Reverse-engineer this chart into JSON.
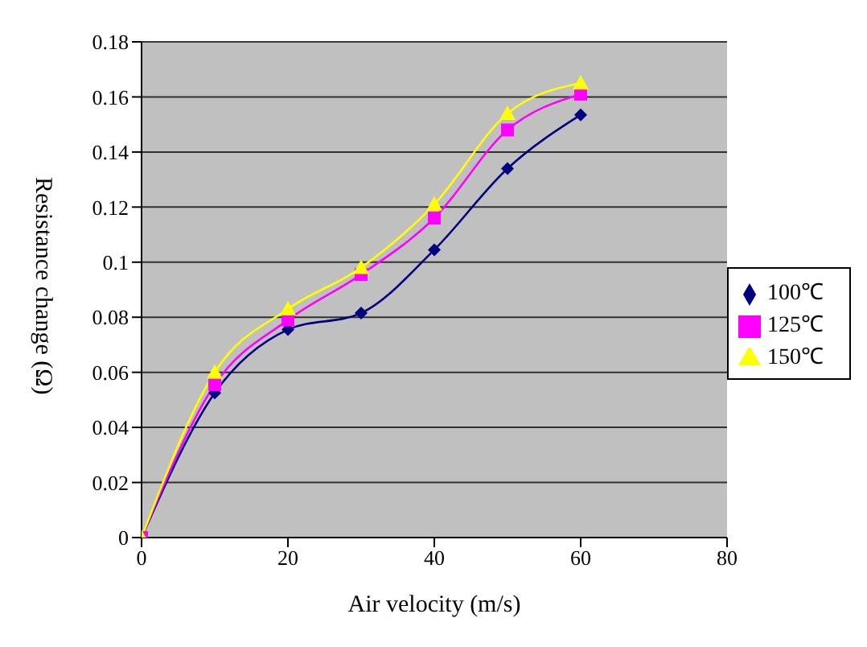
{
  "chart_data": {
    "type": "line",
    "xlabel": "Air velocity (m/s)",
    "ylabel": "Resistance change (Ω)",
    "x": [
      0,
      10,
      20,
      30,
      40,
      50,
      60
    ],
    "series": [
      {
        "name": "100℃",
        "color": "#000080",
        "marker": "diamond",
        "values": [
          0,
          0.0525,
          0.0755,
          0.0815,
          0.1045,
          0.134,
          0.1535
        ]
      },
      {
        "name": "125℃",
        "color": "#ff00ff",
        "marker": "square",
        "values": [
          0,
          0.0555,
          0.079,
          0.0955,
          0.116,
          0.148,
          0.161
        ]
      },
      {
        "name": "150℃",
        "color": "#ffff00",
        "marker": "triangle",
        "values": [
          0,
          0.06,
          0.083,
          0.098,
          0.121,
          0.154,
          0.165
        ]
      }
    ],
    "xlim": [
      0,
      80
    ],
    "xticks": [
      0,
      20,
      40,
      60,
      80
    ],
    "ylim": [
      0,
      0.18
    ],
    "yticks": [
      0,
      0.02,
      0.04,
      0.06,
      0.08,
      0.1,
      0.12,
      0.14,
      0.16,
      0.18
    ],
    "grid": "y",
    "legend": "right"
  }
}
